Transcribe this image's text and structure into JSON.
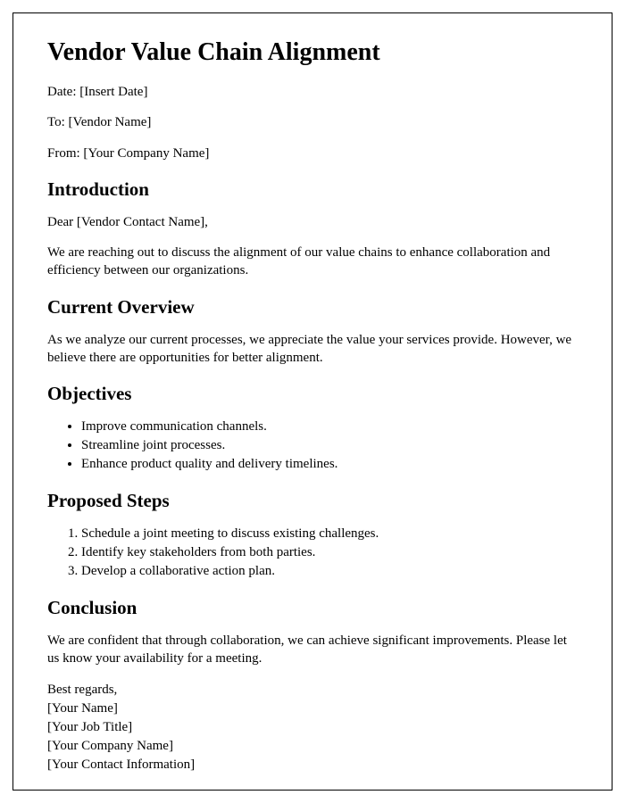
{
  "title": "Vendor Value Chain Alignment",
  "meta": {
    "date": "Date: [Insert Date]",
    "to": "To: [Vendor Name]",
    "from": "From: [Your Company Name]"
  },
  "sections": {
    "introduction": {
      "heading": "Introduction",
      "salutation": "Dear [Vendor Contact Name],",
      "body": "We are reaching out to discuss the alignment of our value chains to enhance collaboration and efficiency between our organizations."
    },
    "current_overview": {
      "heading": "Current Overview",
      "body": "As we analyze our current processes, we appreciate the value your services provide. However, we believe there are opportunities for better alignment."
    },
    "objectives": {
      "heading": "Objectives",
      "items": [
        "Improve communication channels.",
        "Streamline joint processes.",
        "Enhance product quality and delivery timelines."
      ]
    },
    "proposed_steps": {
      "heading": "Proposed Steps",
      "items": [
        "Schedule a joint meeting to discuss existing challenges.",
        "Identify key stakeholders from both parties.",
        "Develop a collaborative action plan."
      ]
    },
    "conclusion": {
      "heading": "Conclusion",
      "body": "We are confident that through collaboration, we can achieve significant improvements. Please let us know your availability for a meeting."
    }
  },
  "signature": {
    "closing": "Best regards,",
    "name": "[Your Name]",
    "job_title": "[Your Job Title]",
    "company": "[Your Company Name]",
    "contact": "[Your Contact Information]"
  }
}
